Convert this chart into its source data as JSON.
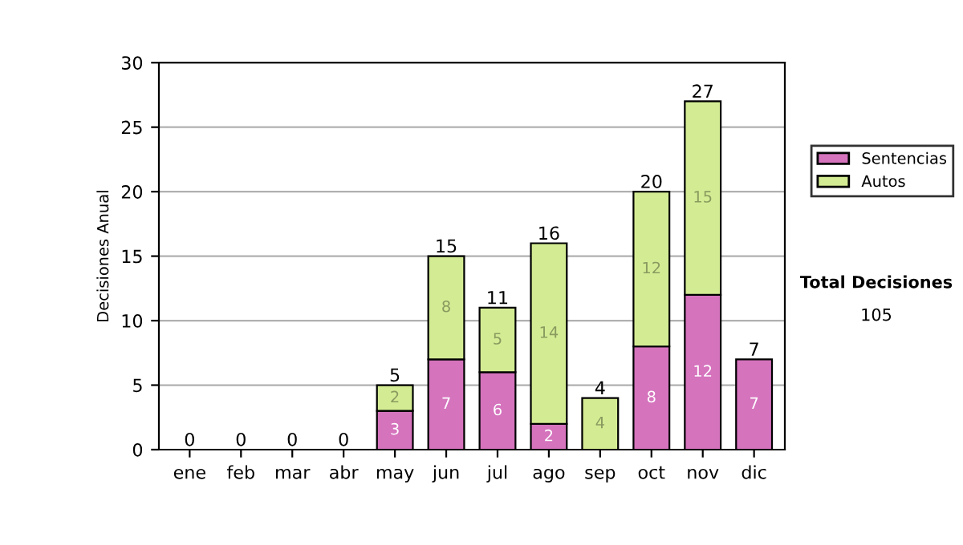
{
  "chart_data": {
    "type": "bar",
    "ylabel": "Decisiones Anual",
    "categories": [
      "ene",
      "feb",
      "mar",
      "abr",
      "may",
      "jun",
      "jul",
      "ago",
      "sep",
      "oct",
      "nov",
      "dic"
    ],
    "stacked": true,
    "series": [
      {
        "name": "Sentencias",
        "color": "#d573bd",
        "values": [
          0,
          0,
          0,
          0,
          3,
          7,
          6,
          2,
          0,
          8,
          12,
          7
        ],
        "value_labels": [
          null,
          null,
          null,
          null,
          "3",
          "7",
          "6",
          "2",
          null,
          "8",
          "12",
          "7"
        ]
      },
      {
        "name": "Autos",
        "color": "#d3ec93",
        "values": [
          0,
          0,
          0,
          0,
          2,
          8,
          5,
          14,
          4,
          12,
          15,
          0
        ],
        "value_labels": [
          null,
          null,
          null,
          null,
          "2",
          "8",
          "5",
          "14",
          "4",
          "12",
          "15",
          null
        ]
      }
    ],
    "totals": [
      "0",
      "0",
      "0",
      "0",
      "5",
      "15",
      "11",
      "16",
      "4",
      "20",
      "27",
      "7"
    ],
    "ylim": [
      0,
      30
    ],
    "yticks": [
      0,
      5,
      10,
      15,
      20,
      25,
      30
    ],
    "grid": "y",
    "legend": "right",
    "annotations": [
      "Total Decisiones",
      "105"
    ]
  }
}
